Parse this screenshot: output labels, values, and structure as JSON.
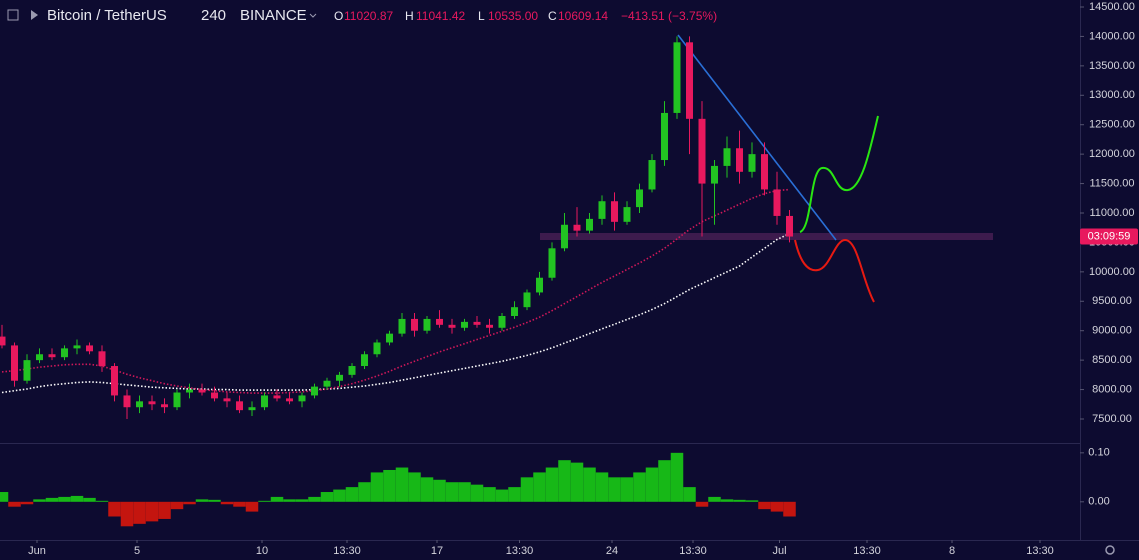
{
  "header": {
    "symbol": "Bitcoin / TetherUS",
    "interval": "240",
    "exchange": "BINANCE",
    "ohlc": [
      {
        "label": "O",
        "value": "11020.87"
      },
      {
        "label": "H",
        "value": "11041.42"
      },
      {
        "label": "L",
        "value": "10535.00"
      },
      {
        "label": "C",
        "value": "10609.14"
      }
    ],
    "change": "−413.51 (−3.75%)"
  },
  "chart_data": {
    "type": "candlestick",
    "x": [
      -1.4,
      -0.9,
      -0.4,
      0.1,
      0.6,
      1.1,
      1.6,
      2.1,
      2.6,
      3.1,
      3.6,
      4.1,
      4.6,
      5.1,
      5.6,
      6.1,
      6.6,
      7.1,
      7.6,
      8.1,
      8.6,
      9.1,
      9.6,
      10.1,
      10.6,
      11.1,
      11.6,
      12.1,
      12.6,
      13.1,
      13.6,
      14.1,
      14.6,
      15.1,
      15.6,
      16.1,
      16.6,
      17.1,
      17.6,
      18.1,
      18.6,
      19.1,
      19.6,
      20.1,
      20.6,
      21.1,
      21.6,
      22.1,
      22.6,
      23.1,
      23.6,
      24.1,
      24.6,
      25.1,
      25.6,
      26.1,
      26.6,
      27.1,
      27.6,
      28.1,
      28.6,
      29.1,
      29.6,
      30.1
    ],
    "open": [
      8900,
      8750,
      8150,
      8500,
      8600,
      8550,
      8700,
      8750,
      8650,
      8400,
      7900,
      7700,
      7800,
      7750,
      7700,
      7950,
      8000,
      7950,
      7850,
      7800,
      7650,
      7700,
      7900,
      7850,
      7800,
      7900,
      8050,
      8150,
      8250,
      8400,
      8600,
      8800,
      8950,
      9200,
      9000,
      9200,
      9100,
      9050,
      9150,
      9100,
      9050,
      9250,
      9400,
      9650,
      9900,
      10400,
      10800,
      10700,
      10900,
      11200,
      10850,
      11100,
      11400,
      11900,
      12700,
      13900,
      12600,
      11500,
      11800,
      12100,
      11700,
      12000,
      11400,
      10950
    ],
    "high": [
      9100,
      8800,
      8600,
      8700,
      8700,
      8750,
      8850,
      8800,
      8750,
      8450,
      8000,
      7900,
      7900,
      7850,
      8000,
      8100,
      8100,
      8050,
      7950,
      7900,
      7800,
      7950,
      8000,
      7950,
      7950,
      8100,
      8200,
      8300,
      8450,
      8650,
      8850,
      9000,
      9300,
      9300,
      9250,
      9350,
      9200,
      9200,
      9250,
      9200,
      9300,
      9500,
      9700,
      10000,
      10500,
      11000,
      11100,
      11000,
      11300,
      11350,
      11200,
      11500,
      12000,
      12900,
      14000,
      14000,
      12900,
      11900,
      12300,
      12400,
      12200,
      12200,
      11700,
      11050
    ],
    "low": [
      8700,
      8050,
      8100,
      8450,
      8500,
      8500,
      8600,
      8600,
      8300,
      7800,
      7500,
      7600,
      7650,
      7600,
      7650,
      7850,
      7900,
      7800,
      7700,
      7600,
      7550,
      7650,
      7800,
      7750,
      7700,
      7850,
      8000,
      8050,
      8200,
      8350,
      8550,
      8750,
      8900,
      8900,
      8950,
      9050,
      8950,
      9000,
      9050,
      8950,
      9000,
      9200,
      9350,
      9600,
      9850,
      10350,
      10600,
      10650,
      10800,
      10700,
      10800,
      11000,
      11350,
      11800,
      12600,
      12000,
      10600,
      10800,
      11600,
      11500,
      11600,
      11300,
      10800,
      10500
    ],
    "close": [
      8750,
      8150,
      8500,
      8600,
      8550,
      8700,
      8750,
      8650,
      8400,
      7900,
      7700,
      7800,
      7750,
      7700,
      7950,
      8000,
      7950,
      7850,
      7800,
      7650,
      7700,
      7900,
      7850,
      7800,
      7900,
      8050,
      8150,
      8250,
      8400,
      8600,
      8800,
      8950,
      9200,
      9000,
      9200,
      9100,
      9050,
      9150,
      9100,
      9050,
      9250,
      9400,
      9650,
      9900,
      10400,
      10800,
      10700,
      10900,
      11200,
      10850,
      11100,
      11400,
      11900,
      12700,
      13900,
      12600,
      11500,
      11800,
      12100,
      11700,
      12000,
      11400,
      10950,
      10600
    ],
    "up_color": "#22c322",
    "down_color": "#e8195e",
    "ma_series": [
      {
        "color": "#ffffff",
        "values": [
          7950,
          7980,
          8010,
          8050,
          8080,
          8100,
          8120,
          8130,
          8120,
          8100,
          8080,
          8060,
          8040,
          8030,
          8020,
          8010,
          8010,
          8000,
          8000,
          7990,
          7990,
          7990,
          7990,
          7990,
          7990,
          8000,
          8010,
          8020,
          8040,
          8060,
          8090,
          8120,
          8160,
          8200,
          8240,
          8280,
          8320,
          8360,
          8400,
          8440,
          8480,
          8530,
          8580,
          8640,
          8710,
          8790,
          8870,
          8950,
          9030,
          9110,
          9190,
          9270,
          9360,
          9460,
          9580,
          9700,
          9800,
          9900,
          10000,
          10100,
          10250,
          10400,
          10550,
          10650
        ]
      },
      {
        "color": "#d0185a",
        "values": [
          8300,
          8320,
          8350,
          8380,
          8400,
          8420,
          8430,
          8430,
          8400,
          8330,
          8260,
          8200,
          8150,
          8100,
          8060,
          8030,
          8000,
          7980,
          7960,
          7950,
          7940,
          7940,
          7940,
          7950,
          7960,
          7980,
          8010,
          8050,
          8100,
          8160,
          8230,
          8310,
          8400,
          8480,
          8560,
          8640,
          8710,
          8780,
          8850,
          8920,
          8990,
          9060,
          9140,
          9230,
          9340,
          9460,
          9580,
          9700,
          9820,
          9930,
          10040,
          10150,
          10270,
          10400,
          10560,
          10720,
          10850,
          10950,
          11050,
          11150,
          11250,
          11330,
          11380,
          11400
        ]
      }
    ],
    "histogram": {
      "up_color": "#17b817",
      "down_color": "#c4150f",
      "values": [
        0.02,
        -0.01,
        -0.005,
        0.005,
        0.008,
        0.01,
        0.012,
        0.008,
        0.002,
        -0.03,
        -0.05,
        -0.045,
        -0.04,
        -0.035,
        -0.015,
        -0.005,
        0.005,
        0.004,
        -0.005,
        -0.01,
        -0.02,
        0.002,
        0.01,
        0.005,
        0.005,
        0.01,
        0.02,
        0.025,
        0.03,
        0.04,
        0.06,
        0.065,
        0.07,
        0.06,
        0.05,
        0.045,
        0.04,
        0.04,
        0.035,
        0.03,
        0.025,
        0.03,
        0.05,
        0.06,
        0.07,
        0.085,
        0.08,
        0.07,
        0.06,
        0.05,
        0.05,
        0.06,
        0.07,
        0.085,
        0.1,
        0.03,
        -0.01,
        0.01,
        0.005,
        0.004,
        0.003,
        -0.015,
        -0.02,
        -0.03
      ]
    },
    "xlim": [
      -1.48,
      41.72
    ],
    "xticks": [
      {
        "value": 0,
        "label": "Jun"
      },
      {
        "value": 4,
        "label": "5"
      },
      {
        "value": 9,
        "label": "10"
      },
      {
        "value": 12.4,
        "label": "13:30"
      },
      {
        "value": 16,
        "label": "17"
      },
      {
        "value": 19.3,
        "label": "13:30"
      },
      {
        "value": 23,
        "label": "24"
      },
      {
        "value": 26.24,
        "label": "13:30"
      },
      {
        "value": 29.7,
        "label": "Jul"
      },
      {
        "value": 33.2,
        "label": "13:30"
      },
      {
        "value": 36.6,
        "label": "8"
      },
      {
        "value": 40.12,
        "label": "13:30"
      }
    ],
    "ylim": [
      7143,
      14619
    ],
    "yticks": [
      {
        "value": 7500,
        "label": "7500.00"
      },
      {
        "value": 8000,
        "label": "8000.00"
      },
      {
        "value": 8500,
        "label": "8500.00"
      },
      {
        "value": 9000,
        "label": "9000.00"
      },
      {
        "value": 9500,
        "label": "9500.00"
      },
      {
        "value": 10000,
        "label": "10000.00"
      },
      {
        "value": 10500,
        "label": "10500.00"
      },
      {
        "value": 11000,
        "label": "11000.00"
      },
      {
        "value": 11500,
        "label": "11500.00"
      },
      {
        "value": 12000,
        "label": "12000.00"
      },
      {
        "value": 12500,
        "label": "12500.00"
      },
      {
        "value": 13000,
        "label": "13000.00"
      },
      {
        "value": 13500,
        "label": "13500.00"
      },
      {
        "value": 14000,
        "label": "14000.00"
      },
      {
        "value": 14500,
        "label": "14500.00"
      }
    ],
    "y2lim": [
      -0.078,
      0.116
    ],
    "y2ticks": [
      {
        "value": 0.1,
        "label": "0.10"
      },
      {
        "value": 0,
        "label": "0.00"
      }
    ],
    "countdown": "03:09:59"
  }
}
